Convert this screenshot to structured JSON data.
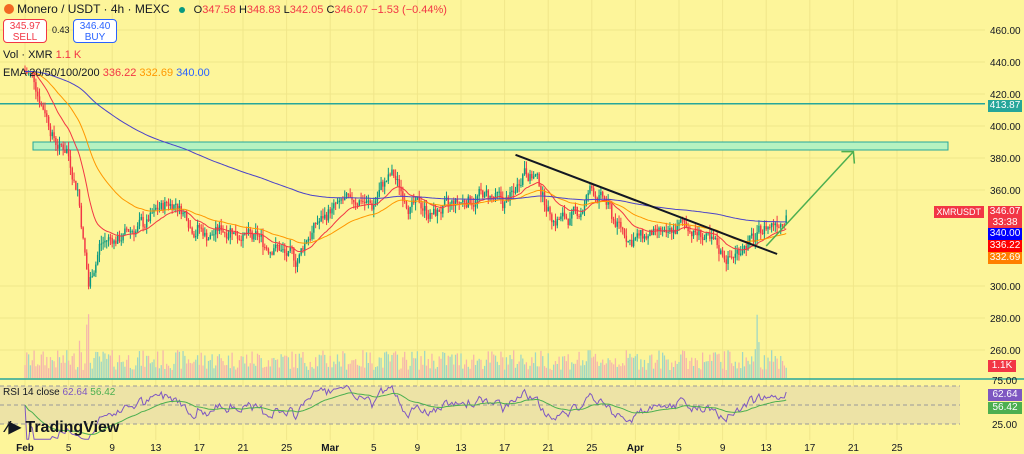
{
  "header": {
    "symbol": "Monero / USDT · 4h · MEXC",
    "o_label": "O",
    "o": "347.58",
    "h_label": "H",
    "h": "348.83",
    "l_label": "L",
    "l": "342.05",
    "c_label": "C",
    "c": "346.07",
    "change": "−1.53 (−0.44%)"
  },
  "trade": {
    "sell_price": "345.97",
    "sell_label": "SELL",
    "spread": "0.43",
    "buy_price": "346.40",
    "buy_label": "BUY"
  },
  "volume_legend": {
    "label": "Vol · XMR",
    "value": "1.1 K"
  },
  "ema_legend": {
    "label": "EMA 20/50/100/200",
    "v1": "336.22",
    "v2": "332.69",
    "v3": "340.00"
  },
  "rsi_legend": {
    "label": "RSI 14 close",
    "v1": "62.64",
    "v2": "56.42"
  },
  "price_tags": {
    "symbol": "XMRUSDT",
    "last": "346.07",
    "countdown": "33:38",
    "ema200": "340.00",
    "ema20": "336.22",
    "ema50": "332.69",
    "level": "413.87",
    "volume": "1.1K",
    "rsi": "62.64",
    "rsi_ma": "56.42"
  },
  "logo": "TradingView",
  "colors": {
    "bg": "#fdf59a",
    "up": "#089981",
    "down": "#f23645",
    "ema20": "#f23645",
    "ema50": "#ff9800",
    "ema200": "#4b43c9",
    "level": "#26a69a",
    "zone": "#b6f2c0",
    "trend": "#131722",
    "arrow": "#4caf50",
    "rsi": "#7e57c2",
    "rsi_ma": "#4caf50"
  },
  "chart_data": {
    "type": "candlestick",
    "price_axis": {
      "ticks": [
        "460.00",
        "440.00",
        "420.00",
        "400.00",
        "380.00",
        "360.00",
        "300.00",
        "280.00",
        "260.00"
      ],
      "range": [
        250,
        470
      ]
    },
    "rsi_axis": {
      "ticks": [
        "75.00",
        "25.00"
      ]
    },
    "x_ticks": [
      "Feb",
      "5",
      "9",
      "13",
      "17",
      "21",
      "25",
      "Mar",
      "5",
      "9",
      "13",
      "17",
      "21",
      "25",
      "Apr",
      "5",
      "9",
      "13",
      "17",
      "21",
      "25"
    ],
    "daily_close": [
      430,
      410,
      390,
      385,
      360,
      300,
      325,
      330,
      330,
      335,
      340,
      345,
      350,
      352,
      345,
      335,
      330,
      335,
      335,
      332,
      330,
      328,
      325,
      320,
      315,
      330,
      340,
      345,
      350,
      352,
      355,
      350,
      365,
      370,
      355,
      350,
      348,
      345,
      350,
      352,
      355,
      358,
      355,
      352,
      358,
      375,
      368,
      350,
      340,
      342,
      345,
      360,
      355,
      345,
      335,
      328,
      330,
      332,
      330,
      335,
      338,
      332,
      328,
      320,
      318,
      325,
      330,
      335,
      340,
      346
    ],
    "horizontal_level": 413.87,
    "zone": [
      385,
      390
    ],
    "trendline": {
      "from": [
        "Mar 17",
        382
      ],
      "to": [
        "Apr 10",
        320
      ]
    },
    "arrow": {
      "from": [
        "Apr 9",
        325
      ],
      "to": [
        "Apr 17",
        384
      ]
    }
  }
}
